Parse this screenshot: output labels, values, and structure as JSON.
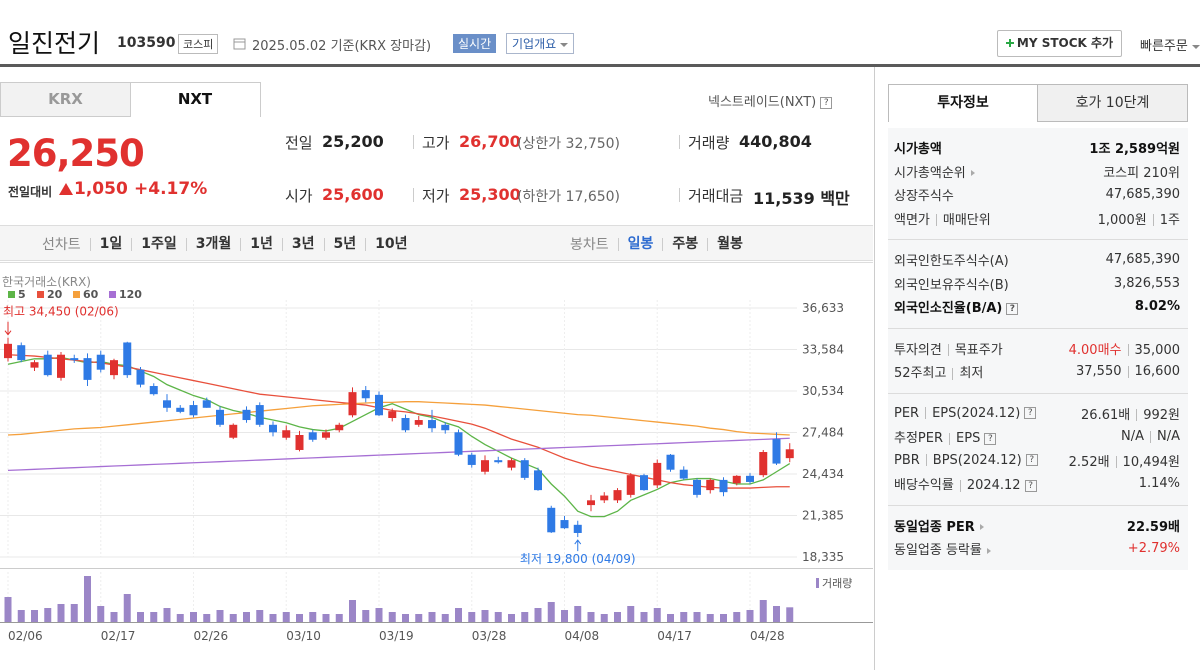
{
  "header": {
    "name": "일진전기",
    "code": "103590",
    "market": "코스피",
    "date_info": "2025.05.02 기준(KRX 장마감)",
    "realtime": "실시간",
    "company_info": "기업개요",
    "my_stock": "MY STOCK 추가",
    "quick_order": "빠른주문"
  },
  "tabs": [
    "KRX",
    "NXT"
  ],
  "nxt_link": "넥스트레이드(NXT)",
  "price": {
    "current": "26,250",
    "change_label": "전일대비",
    "change": "1,050",
    "change_pct": "+4.17%"
  },
  "stats": {
    "prev": {
      "label": "전일",
      "value": "25,200"
    },
    "high": {
      "label": "고가",
      "value": "26,700",
      "limit": "(상한가 32,750)"
    },
    "volume": {
      "label": "거래량",
      "value": "440,804"
    },
    "open": {
      "label": "시가",
      "value": "25,600"
    },
    "low": {
      "label": "저가",
      "value": "25,300",
      "limit": "(하한가 17,650)"
    },
    "amount": {
      "label": "거래대금",
      "value": "11,539",
      "unit": "백만"
    }
  },
  "periods": {
    "line_chart": "선차트",
    "items": [
      "1일",
      "1주일",
      "3개월",
      "1년",
      "3년",
      "5년",
      "10년"
    ],
    "candle_chart": "봉차트",
    "candle_items": [
      "일봉",
      "주봉",
      "월봉"
    ]
  },
  "chart_data": {
    "type": "candlestick",
    "source": "한국거래소(KRX)",
    "categories": [
      "02/06",
      null,
      null,
      null,
      null,
      null,
      null,
      "02/17",
      null,
      null,
      null,
      null,
      null,
      null,
      "02/26",
      null,
      null,
      null,
      null,
      null,
      null,
      "03/10",
      null,
      null,
      null,
      null,
      null,
      null,
      "03/19",
      null,
      null,
      null,
      null,
      null,
      null,
      "03/28",
      null,
      null,
      null,
      null,
      null,
      null,
      "04/08",
      null,
      null,
      null,
      null,
      null,
      null,
      "04/17",
      null,
      null,
      null,
      null,
      null,
      null,
      "04/28",
      null,
      null,
      null
    ],
    "open": [
      32950,
      33900,
      32250,
      33200,
      31500,
      32950,
      32950,
      33200,
      31700,
      34100,
      32100,
      30900,
      29850,
      29300,
      29500,
      29850,
      29150,
      27100,
      29150,
      29500,
      28050,
      27100,
      26200,
      27500,
      27100,
      27650,
      28750,
      30600,
      30250,
      28550,
      28550,
      28050,
      28400,
      28050,
      27500,
      25850,
      24600,
      25450,
      24900,
      25450,
      24700,
      21950,
      21050,
      20700,
      22150,
      22500,
      22500,
      22900,
      24350,
      23600,
      25850,
      24750,
      24000,
      23250,
      24000,
      23750,
      24300,
      24350,
      27000,
      25600
    ],
    "high": [
      34450,
      34100,
      32800,
      33500,
      33400,
      33200,
      33300,
      33500,
      32900,
      34150,
      32300,
      31100,
      30300,
      29500,
      29800,
      30050,
      29400,
      28150,
      29400,
      29700,
      28300,
      28000,
      27600,
      27700,
      27700,
      28200,
      30800,
      30900,
      30500,
      29250,
      28800,
      28700,
      29150,
      28250,
      27700,
      26000,
      25800,
      25700,
      25600,
      25600,
      24900,
      22100,
      21350,
      21000,
      22900,
      23100,
      23400,
      24500,
      24450,
      25500,
      25900,
      25000,
      24100,
      24100,
      24200,
      24350,
      24500,
      26200,
      27500,
      26700
    ],
    "low": [
      32700,
      32650,
      32000,
      31600,
      31300,
      32600,
      30900,
      31900,
      31400,
      31500,
      30800,
      30200,
      29000,
      28900,
      28600,
      29300,
      27900,
      27000,
      28200,
      27900,
      27200,
      26950,
      26100,
      26800,
      26950,
      27500,
      28600,
      29700,
      28700,
      28300,
      27500,
      27900,
      27500,
      27400,
      25750,
      24900,
      24400,
      25200,
      24700,
      24000,
      23200,
      20100,
      20400,
      19800,
      21700,
      22300,
      22300,
      22700,
      23200,
      23400,
      24600,
      24000,
      22700,
      23000,
      22800,
      23600,
      23700,
      24200,
      25100,
      25300
    ],
    "close": [
      34000,
      32800,
      32650,
      31700,
      33200,
      32800,
      31350,
      32100,
      32800,
      31700,
      31000,
      30300,
      29300,
      29000,
      28750,
      29300,
      28050,
      28050,
      28400,
      28050,
      27500,
      27650,
      27300,
      26950,
      27500,
      28050,
      30450,
      30000,
      28750,
      29050,
      27650,
      28400,
      27800,
      27650,
      25850,
      25100,
      25450,
      25300,
      25450,
      24150,
      23250,
      20150,
      20450,
      20100,
      22500,
      22850,
      23250,
      24350,
      23250,
      25250,
      24750,
      24100,
      22900,
      24000,
      23100,
      24300,
      23850,
      26050,
      25200,
      26250
    ],
    "up_color": "#e0312f",
    "down_color": "#2f7ae5",
    "series": [
      {
        "name": "5",
        "color": "#5db548",
        "values": [
          32500,
          32700,
          32900,
          32900,
          33000,
          32800,
          32600,
          32700,
          32500,
          32400,
          32000,
          31600,
          31000,
          30600,
          30200,
          29900,
          29400,
          29100,
          28900,
          28600,
          28400,
          28200,
          27900,
          27700,
          27600,
          27800,
          28300,
          28800,
          29300,
          29600,
          29200,
          28800,
          28600,
          28200,
          27900,
          27200,
          26600,
          26100,
          25600,
          25200,
          24800,
          23700,
          22800,
          21700,
          21300,
          21300,
          21700,
          22500,
          22900,
          23300,
          23800,
          24000,
          24100,
          24100,
          23900,
          23700,
          23700,
          24000,
          24600,
          25200
        ]
      },
      {
        "name": "20",
        "color": "#e8503c",
        "values": [
          33200,
          33150,
          33100,
          33000,
          32900,
          32800,
          32700,
          32600,
          32450,
          32300,
          32100,
          31900,
          31700,
          31500,
          31300,
          31100,
          30900,
          30700,
          30500,
          30300,
          30200,
          30100,
          30000,
          29900,
          29800,
          29700,
          29600,
          29500,
          29300,
          29100,
          29000,
          28850,
          28700,
          28500,
          28300,
          28100,
          27800,
          27400,
          27000,
          26700,
          26400,
          26000,
          25600,
          25300,
          25000,
          24800,
          24600,
          24400,
          24200,
          24000,
          23800,
          23650,
          23550,
          23450,
          23400,
          23400,
          23400,
          23450,
          23500,
          23500
        ]
      },
      {
        "name": "60",
        "color": "#f5a03c",
        "values": [
          27300,
          27350,
          27450,
          27550,
          27650,
          27750,
          27800,
          27850,
          27950,
          28050,
          28150,
          28250,
          28350,
          28450,
          28550,
          28650,
          28750,
          28850,
          28950,
          29050,
          29150,
          29250,
          29350,
          29450,
          29500,
          29550,
          29600,
          29650,
          29700,
          29700,
          29750,
          29750,
          29700,
          29650,
          29600,
          29550,
          29500,
          29400,
          29300,
          29200,
          29100,
          29000,
          28900,
          28800,
          28750,
          28650,
          28550,
          28450,
          28350,
          28250,
          28150,
          28050,
          27950,
          27800,
          27700,
          27550,
          27450,
          27400,
          27350,
          27300
        ]
      },
      {
        "name": "120",
        "color": "#a66fd4",
        "values": [
          24700,
          24740,
          24780,
          24820,
          24860,
          24900,
          24940,
          24980,
          25020,
          25060,
          25100,
          25140,
          25180,
          25220,
          25260,
          25300,
          25340,
          25380,
          25420,
          25460,
          25500,
          25540,
          25580,
          25620,
          25660,
          25700,
          25740,
          25780,
          25820,
          25860,
          25900,
          25940,
          25980,
          26020,
          26060,
          26100,
          26140,
          26180,
          26220,
          26260,
          26300,
          26340,
          26380,
          26420,
          26460,
          26500,
          26540,
          26580,
          26620,
          26660,
          26700,
          26740,
          26780,
          26820,
          26860,
          26900,
          26940,
          26980,
          27020,
          27060
        ]
      }
    ],
    "ylim": [
      18335,
      36633
    ],
    "yticks": [
      {
        "value": 36633,
        "label": "36,633"
      },
      {
        "value": 33584,
        "label": "33,584"
      },
      {
        "value": 30534,
        "label": "30,534"
      },
      {
        "value": 27484,
        "label": "27,484"
      },
      {
        "value": 24434,
        "label": "24,434"
      },
      {
        "value": 21385,
        "label": "21,385"
      },
      {
        "value": 18335,
        "label": "18,335"
      }
    ],
    "annotations": {
      "high": "최고 34,450 (02/06)",
      "low": "최저 19,800 (04/09)"
    },
    "volume": {
      "label": "거래량",
      "color": "#9b86c7",
      "ylim": [
        0,
        1500000
      ],
      "values": [
        750000,
        360000,
        360000,
        420000,
        540000,
        540000,
        1380000,
        480000,
        300000,
        840000,
        300000,
        300000,
        420000,
        240000,
        300000,
        240000,
        360000,
        240000,
        300000,
        360000,
        240000,
        300000,
        240000,
        300000,
        240000,
        240000,
        660000,
        360000,
        420000,
        300000,
        240000,
        240000,
        300000,
        240000,
        420000,
        300000,
        360000,
        300000,
        240000,
        300000,
        420000,
        600000,
        360000,
        480000,
        300000,
        240000,
        300000,
        480000,
        300000,
        420000,
        240000,
        300000,
        300000,
        240000,
        240000,
        300000,
        360000,
        660000,
        480000,
        440804
      ]
    }
  },
  "side": {
    "tabs": [
      "투자정보",
      "호가 10단계"
    ],
    "groups": [
      [
        {
          "label": [
            "시가총액"
          ],
          "value": [
            "1조 2,589억원"
          ],
          "bold": true
        },
        {
          "label": [
            "시가총액순위"
          ],
          "value": [
            "코스피 210위"
          ],
          "arrow": true
        },
        {
          "label": [
            "상장주식수"
          ],
          "value": [
            "47,685,390"
          ]
        },
        {
          "label": [
            "액면가",
            "매매단위"
          ],
          "value": [
            "1,000원",
            "1주"
          ]
        }
      ],
      [
        {
          "label": [
            "외국인한도주식수(A)"
          ],
          "value": [
            "47,685,390"
          ]
        },
        {
          "label": [
            "외국인보유주식수(B)"
          ],
          "value": [
            "3,826,553"
          ]
        },
        {
          "label": [
            "외국인소진율(B/A)"
          ],
          "value": [
            "8.02%"
          ],
          "bold": true,
          "help": true
        }
      ],
      [
        {
          "label": [
            "투자의견",
            "목표주가"
          ],
          "value": [
            {
              "text": "4.00매수",
              "color": "#e0312f"
            },
            "35,000"
          ]
        },
        {
          "label": [
            "52주최고",
            "최저"
          ],
          "value": [
            "37,550",
            "16,600"
          ]
        }
      ],
      [
        {
          "label": [
            "PER",
            "EPS(2024.12)"
          ],
          "value": [
            "26.61배",
            "992원"
          ],
          "help": true
        },
        {
          "label": [
            "추정PER",
            "EPS"
          ],
          "value": [
            "N/A",
            "N/A"
          ],
          "help": true
        },
        {
          "label": [
            "PBR",
            "BPS(2024.12)"
          ],
          "value": [
            "2.52배",
            "10,494원"
          ],
          "help": true
        },
        {
          "label": [
            "배당수익률",
            "2024.12"
          ],
          "value": [
            "1.14%"
          ],
          "help": true
        }
      ],
      [
        {
          "label": [
            "동일업종 PER"
          ],
          "value": [
            "22.59배"
          ],
          "bold": true,
          "arrow": true
        },
        {
          "label": [
            "동일업종 등락률"
          ],
          "value": [
            {
              "text": "+2.79%",
              "color": "#e0312f"
            }
          ],
          "arrow": true
        }
      ]
    ]
  }
}
